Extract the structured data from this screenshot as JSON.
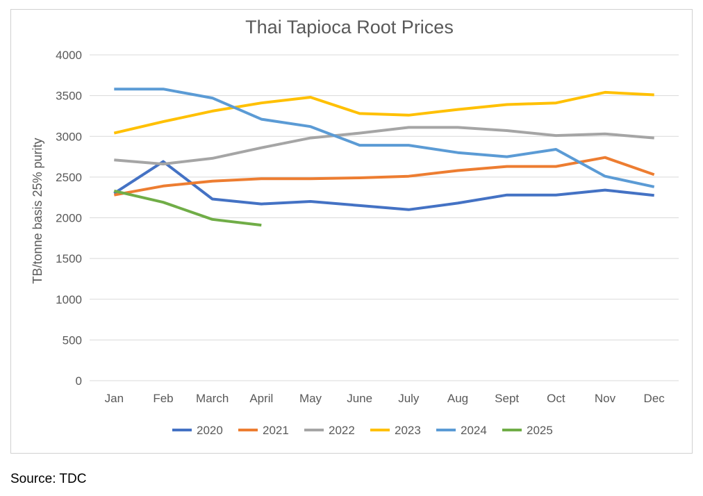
{
  "chart_data": {
    "type": "line",
    "title": "Thai Tapioca Root Prices",
    "xlabel": "",
    "ylabel": "TB/tonne basis 25% purity",
    "ylim": [
      0,
      4000
    ],
    "yticks": [
      0,
      500,
      1000,
      1500,
      2000,
      2500,
      3000,
      3500,
      4000
    ],
    "grid": true,
    "legend_position": "bottom",
    "categories": [
      "Jan",
      "Feb",
      "March",
      "April",
      "May",
      "June",
      "July",
      "Aug",
      "Sept",
      "Oct",
      "Nov",
      "Dec"
    ],
    "series": [
      {
        "name": "2020",
        "color": "#4472c4",
        "values": [
          2300,
          2690,
          2230,
          2170,
          2200,
          2150,
          2100,
          2180,
          2280,
          2280,
          2340,
          2275
        ]
      },
      {
        "name": "2021",
        "color": "#ed7d31",
        "values": [
          2280,
          2390,
          2450,
          2480,
          2480,
          2490,
          2510,
          2580,
          2630,
          2630,
          2740,
          2530
        ]
      },
      {
        "name": "2022",
        "color": "#a5a5a5",
        "values": [
          2710,
          2660,
          2730,
          2860,
          2980,
          3040,
          3110,
          3110,
          3070,
          3010,
          3030,
          2980
        ]
      },
      {
        "name": "2023",
        "color": "#ffc000",
        "values": [
          3040,
          3180,
          3310,
          3410,
          3480,
          3280,
          3260,
          3330,
          3390,
          3410,
          3540,
          3510
        ]
      },
      {
        "name": "2024",
        "color": "#5b9bd5",
        "values": [
          3580,
          3580,
          3470,
          3210,
          3120,
          2890,
          2890,
          2800,
          2750,
          2840,
          2510,
          2380
        ]
      },
      {
        "name": "2025",
        "color": "#70ad47",
        "values": [
          2330,
          2190,
          1980,
          1910,
          null,
          null,
          null,
          null,
          null,
          null,
          null,
          null
        ]
      }
    ]
  },
  "source": "Source: TDC"
}
